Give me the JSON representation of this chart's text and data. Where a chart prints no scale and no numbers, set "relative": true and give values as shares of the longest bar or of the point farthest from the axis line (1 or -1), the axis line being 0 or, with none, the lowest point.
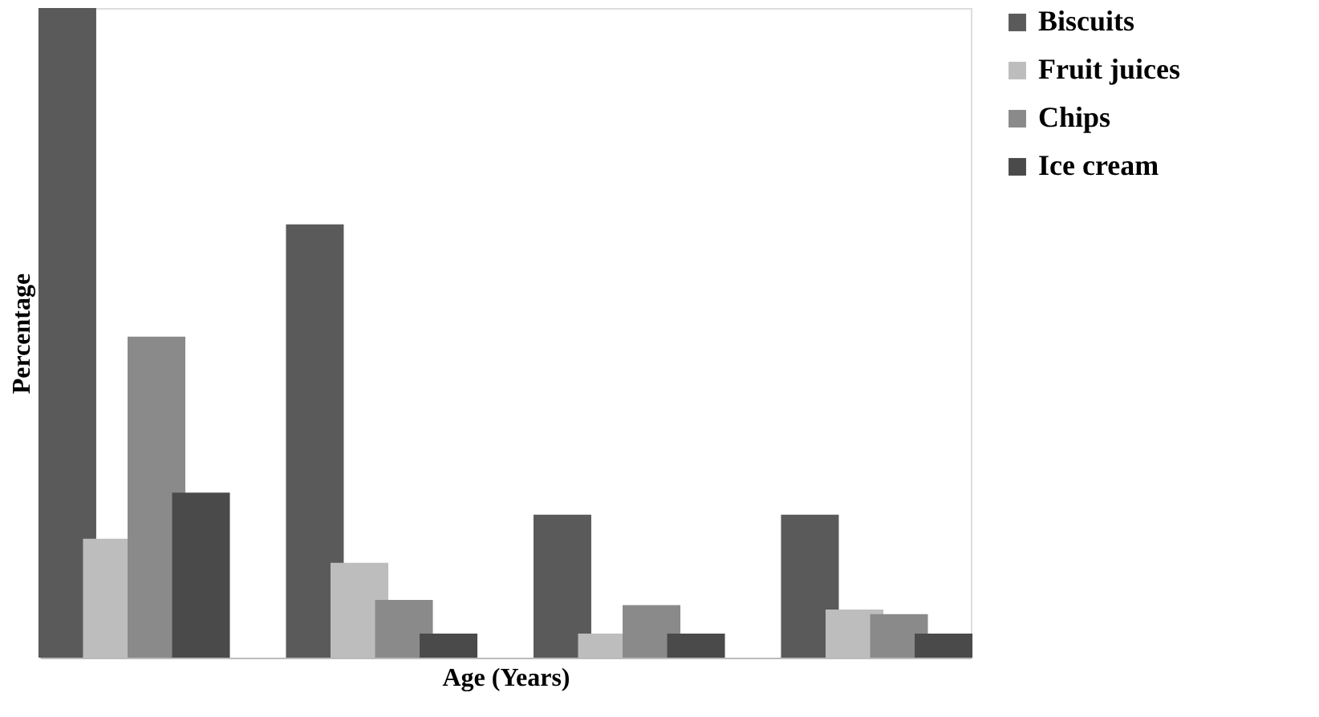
{
  "chart_data": {
    "type": "bar",
    "relative": true,
    "xlabel": "Age (Years)",
    "ylabel": "Percentage",
    "legend": "right",
    "grid": false,
    "categories": [
      null,
      null,
      null,
      null
    ],
    "series": [
      {
        "name": "Biscuits",
        "color": "#5a5a5a",
        "values": [
          1,
          0.667,
          0.22,
          0.22
        ]
      },
      {
        "name": "Fruit juices",
        "color": "#bdbdbd",
        "values": [
          0.183,
          0.146,
          0.037,
          0.074
        ]
      },
      {
        "name": "Chips",
        "color": "#8a8a8a",
        "values": [
          0.494,
          0.089,
          0.081,
          0.067
        ]
      },
      {
        "name": "Ice cream",
        "color": "#4a4a4a",
        "values": [
          0.254,
          0.037,
          0.037,
          0.037
        ]
      }
    ]
  }
}
